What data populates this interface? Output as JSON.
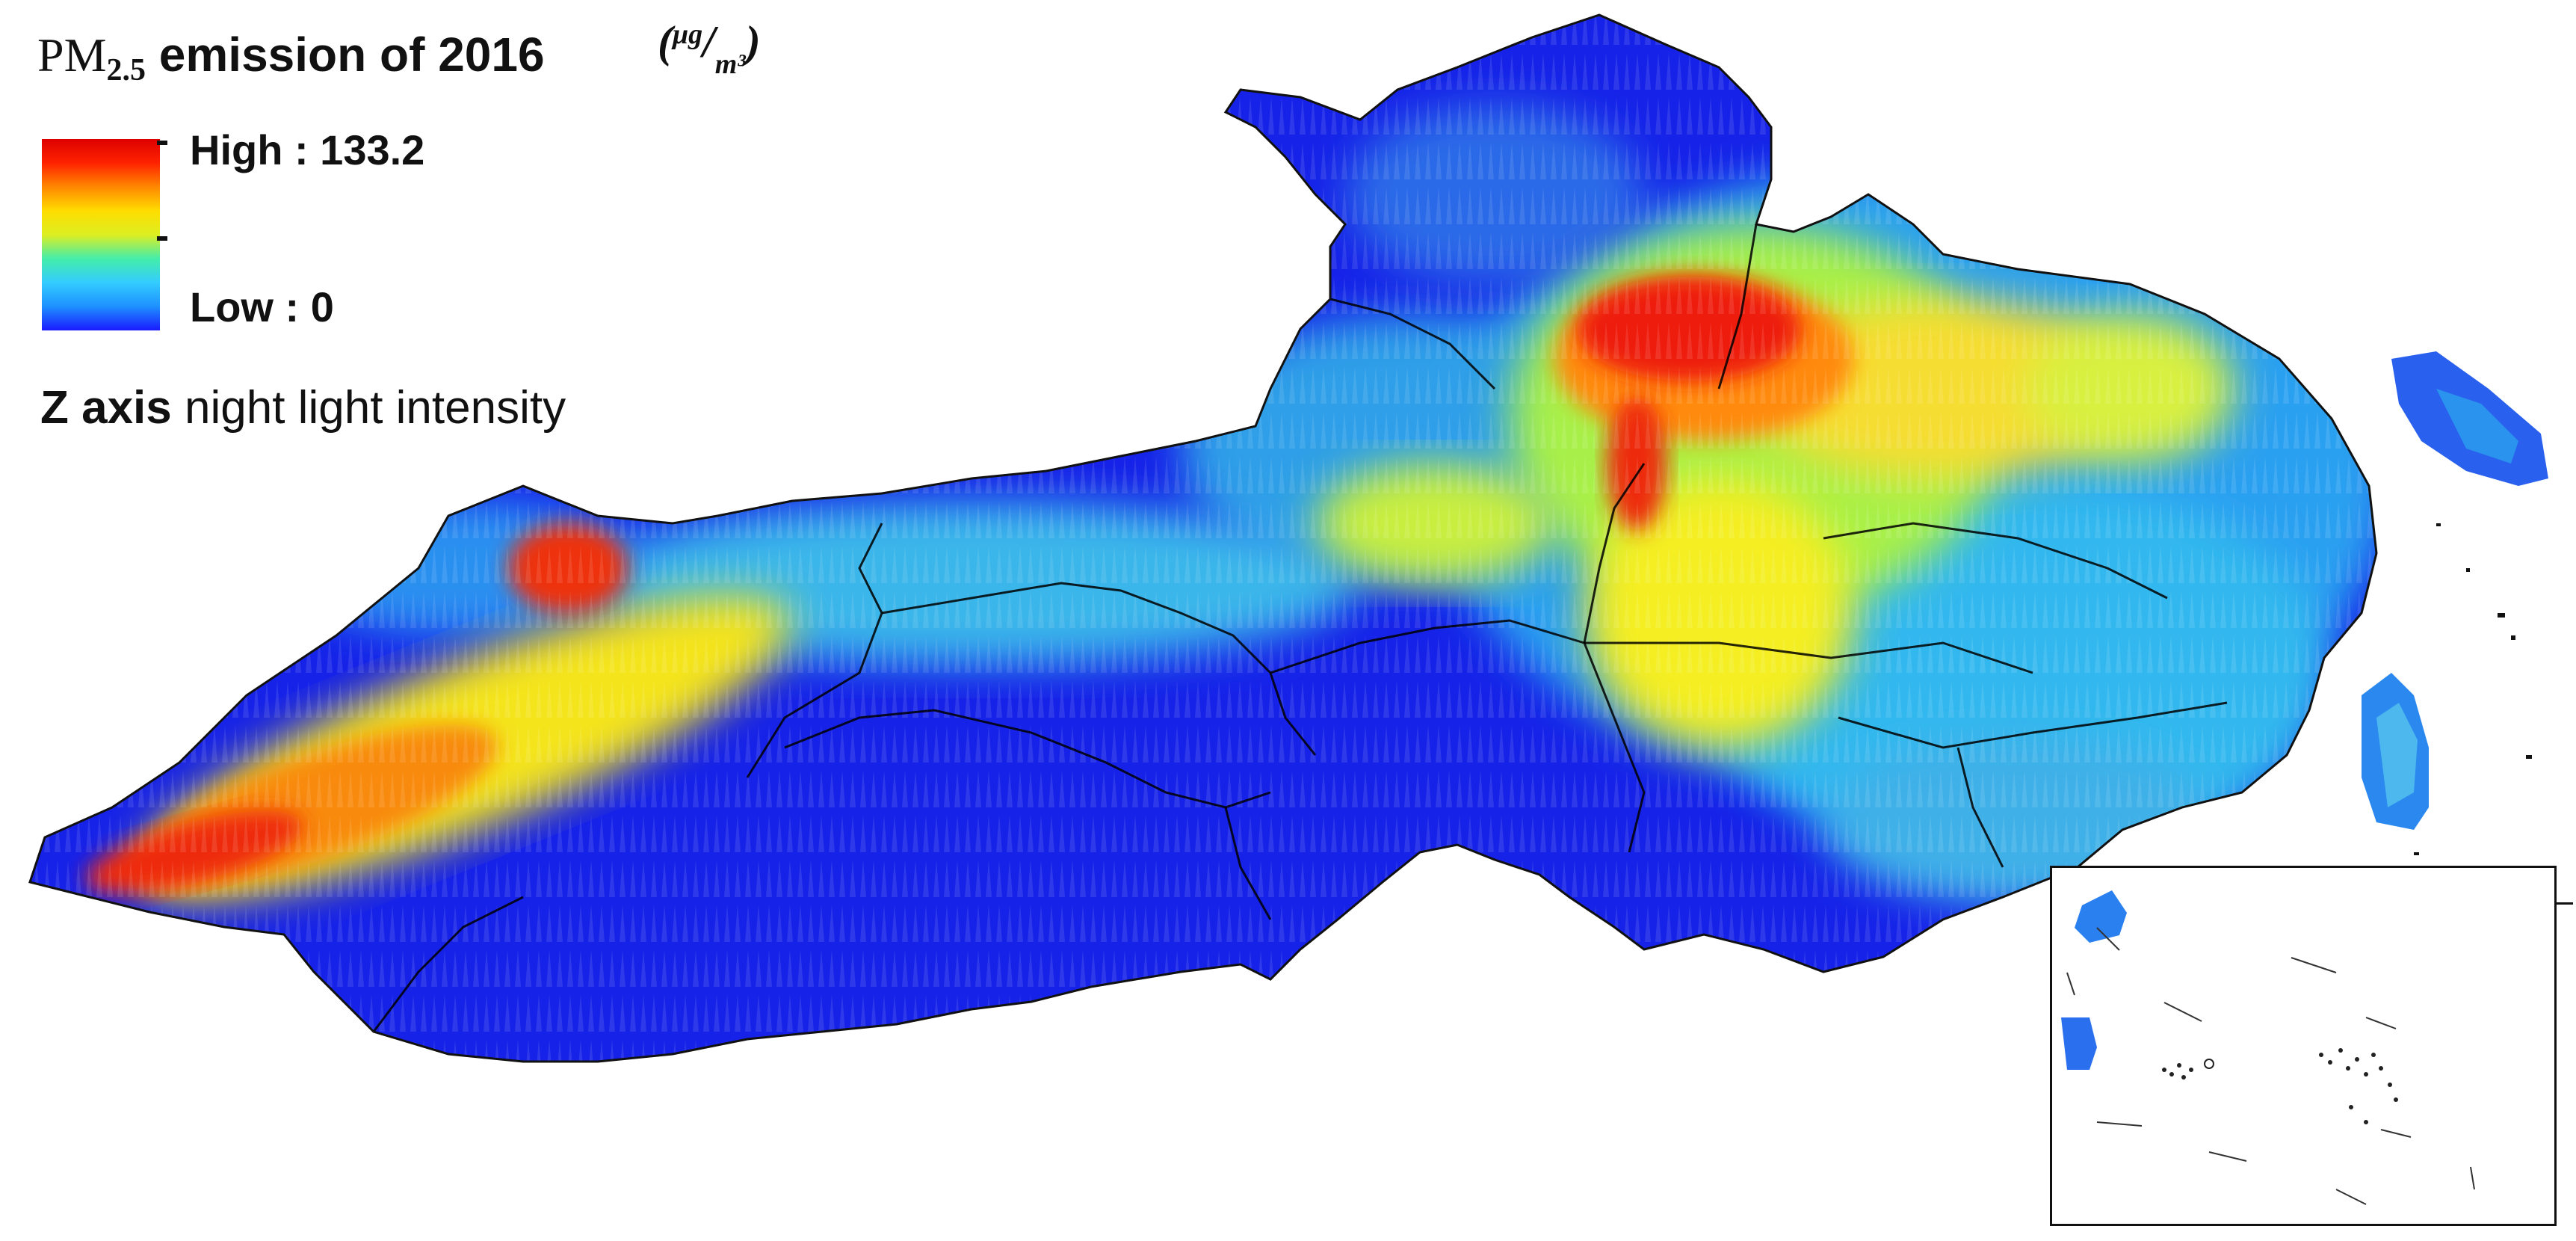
{
  "title": {
    "pm_label": "PM",
    "pm_subscript": "2.5",
    "text": "emission of 2016",
    "unit_open": "(",
    "unit_numerator": "μg",
    "unit_slash": "/",
    "unit_denominator": "m³",
    "unit_close": ")"
  },
  "legend": {
    "high_label": "High : 133.2",
    "low_label": "Low  :  0",
    "max_value": 133.2,
    "min_value": 0,
    "colors": [
      "#1a1aff",
      "#1e90ff",
      "#33ccff",
      "#44eeaa",
      "#ddee22",
      "#ffdd00",
      "#ff8800",
      "#ff2200",
      "#dd0000"
    ]
  },
  "zaxis": {
    "bold": "Z axis",
    "text": " night light intensity"
  },
  "regions": {
    "low_color": "#1a1aee",
    "mid_color": "#33bbee",
    "high_color": "#ee2200",
    "boundary_color": "#000000"
  }
}
